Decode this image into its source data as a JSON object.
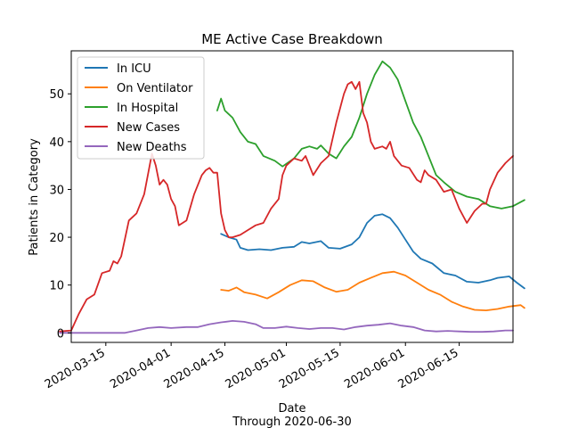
{
  "chart_data": {
    "type": "line",
    "title": "ME Active Case Breakdown",
    "xlabel": "Date",
    "xlabel_sub": "Through 2020-06-30",
    "ylabel": "Patients in Category",
    "xlim": [
      "2020-03-06",
      "2020-06-29"
    ],
    "ylim": [
      -2,
      59
    ],
    "x_ticks": [
      "2020-03-15",
      "2020-04-01",
      "2020-04-15",
      "2020-05-01",
      "2020-05-15",
      "2020-06-01",
      "2020-06-15"
    ],
    "y_ticks": [
      0,
      10,
      20,
      30,
      40,
      50
    ],
    "legend_position": "top-left",
    "grid": false,
    "series": [
      {
        "name": "In ICU",
        "color": "#1f77b4",
        "points": [
          [
            "2020-04-14",
            20.7
          ],
          [
            "2020-04-16",
            20.0
          ],
          [
            "2020-04-18",
            19.5
          ],
          [
            "2020-04-19",
            17.8
          ],
          [
            "2020-04-21",
            17.3
          ],
          [
            "2020-04-24",
            17.5
          ],
          [
            "2020-04-27",
            17.3
          ],
          [
            "2020-04-30",
            17.8
          ],
          [
            "2020-05-03",
            18.0
          ],
          [
            "2020-05-05",
            19.0
          ],
          [
            "2020-05-07",
            18.7
          ],
          [
            "2020-05-10",
            19.2
          ],
          [
            "2020-05-12",
            17.8
          ],
          [
            "2020-05-15",
            17.6
          ],
          [
            "2020-05-18",
            18.5
          ],
          [
            "2020-05-20",
            20.0
          ],
          [
            "2020-05-22",
            23.0
          ],
          [
            "2020-05-24",
            24.5
          ],
          [
            "2020-05-26",
            24.8
          ],
          [
            "2020-05-28",
            24.0
          ],
          [
            "2020-05-30",
            22.0
          ],
          [
            "2020-06-01",
            19.5
          ],
          [
            "2020-06-03",
            17.0
          ],
          [
            "2020-06-05",
            15.5
          ],
          [
            "2020-06-08",
            14.5
          ],
          [
            "2020-06-11",
            12.5
          ],
          [
            "2020-06-14",
            12.0
          ],
          [
            "2020-06-17",
            10.7
          ],
          [
            "2020-06-20",
            10.5
          ],
          [
            "2020-06-23",
            11.0
          ],
          [
            "2020-06-25",
            11.5
          ],
          [
            "2020-06-28",
            11.8
          ],
          [
            "2020-06-30",
            10.5
          ],
          [
            "2020-07-02",
            9.3
          ]
        ]
      },
      {
        "name": "On Ventilator",
        "color": "#ff7f0e",
        "points": [
          [
            "2020-04-14",
            9.0
          ],
          [
            "2020-04-16",
            8.8
          ],
          [
            "2020-04-18",
            9.5
          ],
          [
            "2020-04-20",
            8.5
          ],
          [
            "2020-04-23",
            8.0
          ],
          [
            "2020-04-26",
            7.2
          ],
          [
            "2020-04-29",
            8.5
          ],
          [
            "2020-05-02",
            10.0
          ],
          [
            "2020-05-05",
            11.0
          ],
          [
            "2020-05-08",
            10.8
          ],
          [
            "2020-05-11",
            9.5
          ],
          [
            "2020-05-14",
            8.6
          ],
          [
            "2020-05-17",
            9.0
          ],
          [
            "2020-05-20",
            10.5
          ],
          [
            "2020-05-23",
            11.5
          ],
          [
            "2020-05-26",
            12.5
          ],
          [
            "2020-05-29",
            12.8
          ],
          [
            "2020-06-01",
            12.0
          ],
          [
            "2020-06-04",
            10.5
          ],
          [
            "2020-06-07",
            9.0
          ],
          [
            "2020-06-10",
            8.0
          ],
          [
            "2020-06-13",
            6.5
          ],
          [
            "2020-06-16",
            5.5
          ],
          [
            "2020-06-19",
            4.8
          ],
          [
            "2020-06-22",
            4.7
          ],
          [
            "2020-06-25",
            5.0
          ],
          [
            "2020-06-28",
            5.5
          ],
          [
            "2020-07-01",
            5.8
          ],
          [
            "2020-07-02",
            5.2
          ]
        ]
      },
      {
        "name": "In Hospital",
        "color": "#2ca02c",
        "points": [
          [
            "2020-04-13",
            46.5
          ],
          [
            "2020-04-14",
            49.0
          ],
          [
            "2020-04-15",
            46.5
          ],
          [
            "2020-04-17",
            45.0
          ],
          [
            "2020-04-19",
            42.0
          ],
          [
            "2020-04-21",
            40.0
          ],
          [
            "2020-04-23",
            39.5
          ],
          [
            "2020-04-25",
            37.0
          ],
          [
            "2020-04-28",
            36.0
          ],
          [
            "2020-04-30",
            34.8
          ],
          [
            "2020-05-03",
            36.5
          ],
          [
            "2020-05-05",
            38.5
          ],
          [
            "2020-05-07",
            39.0
          ],
          [
            "2020-05-09",
            38.5
          ],
          [
            "2020-05-10",
            39.2
          ],
          [
            "2020-05-12",
            37.5
          ],
          [
            "2020-05-14",
            36.5
          ],
          [
            "2020-05-16",
            39.0
          ],
          [
            "2020-05-18",
            41.0
          ],
          [
            "2020-05-20",
            45.0
          ],
          [
            "2020-05-22",
            50.0
          ],
          [
            "2020-05-24",
            54.0
          ],
          [
            "2020-05-26",
            56.8
          ],
          [
            "2020-05-28",
            55.5
          ],
          [
            "2020-05-30",
            53.0
          ],
          [
            "2020-06-01",
            48.5
          ],
          [
            "2020-06-03",
            44.0
          ],
          [
            "2020-06-05",
            41.0
          ],
          [
            "2020-06-07",
            37.0
          ],
          [
            "2020-06-09",
            33.0
          ],
          [
            "2020-06-11",
            31.5
          ],
          [
            "2020-06-14",
            29.5
          ],
          [
            "2020-06-17",
            28.5
          ],
          [
            "2020-06-20",
            28.0
          ],
          [
            "2020-06-23",
            26.5
          ],
          [
            "2020-06-26",
            26.0
          ],
          [
            "2020-06-29",
            26.5
          ],
          [
            "2020-07-02",
            27.8
          ]
        ]
      },
      {
        "name": "New Cases",
        "color": "#d62728",
        "points": [
          [
            "2020-03-03",
            0.3
          ],
          [
            "2020-03-06",
            0.5
          ],
          [
            "2020-03-08",
            4.0
          ],
          [
            "2020-03-10",
            7.0
          ],
          [
            "2020-03-12",
            8.0
          ],
          [
            "2020-03-14",
            12.5
          ],
          [
            "2020-03-16",
            13.0
          ],
          [
            "2020-03-17",
            15.0
          ],
          [
            "2020-03-18",
            14.5
          ],
          [
            "2020-03-19",
            16.0
          ],
          [
            "2020-03-21",
            23.5
          ],
          [
            "2020-03-23",
            25.0
          ],
          [
            "2020-03-25",
            29.0
          ],
          [
            "2020-03-27",
            37.5
          ],
          [
            "2020-03-28",
            35.0
          ],
          [
            "2020-03-29",
            31.0
          ],
          [
            "2020-03-30",
            32.0
          ],
          [
            "2020-03-31",
            31.0
          ],
          [
            "2020-04-01",
            28.0
          ],
          [
            "2020-04-02",
            26.5
          ],
          [
            "2020-04-03",
            22.5
          ],
          [
            "2020-04-05",
            23.5
          ],
          [
            "2020-04-07",
            29.0
          ],
          [
            "2020-04-09",
            33.0
          ],
          [
            "2020-04-10",
            34.0
          ],
          [
            "2020-04-11",
            34.5
          ],
          [
            "2020-04-12",
            33.5
          ],
          [
            "2020-04-13",
            33.5
          ],
          [
            "2020-04-14",
            25.0
          ],
          [
            "2020-04-15",
            21.5
          ],
          [
            "2020-04-16",
            20.0
          ],
          [
            "2020-04-17",
            20.0
          ],
          [
            "2020-04-19",
            20.5
          ],
          [
            "2020-04-21",
            21.5
          ],
          [
            "2020-04-23",
            22.5
          ],
          [
            "2020-04-25",
            23.0
          ],
          [
            "2020-04-27",
            26.0
          ],
          [
            "2020-04-29",
            28.0
          ],
          [
            "2020-04-30",
            33.0
          ],
          [
            "2020-05-01",
            35.0
          ],
          [
            "2020-05-03",
            36.5
          ],
          [
            "2020-05-05",
            36.0
          ],
          [
            "2020-05-06",
            37.0
          ],
          [
            "2020-05-08",
            33.0
          ],
          [
            "2020-05-10",
            35.5
          ],
          [
            "2020-05-12",
            37.0
          ],
          [
            "2020-05-14",
            44.0
          ],
          [
            "2020-05-16",
            50.0
          ],
          [
            "2020-05-17",
            52.0
          ],
          [
            "2020-05-18",
            52.5
          ],
          [
            "2020-05-19",
            51.0
          ],
          [
            "2020-05-20",
            52.5
          ],
          [
            "2020-05-21",
            46.0
          ],
          [
            "2020-05-22",
            44.0
          ],
          [
            "2020-05-23",
            40.0
          ],
          [
            "2020-05-24",
            38.5
          ],
          [
            "2020-05-26",
            39.0
          ],
          [
            "2020-05-27",
            38.5
          ],
          [
            "2020-05-28",
            40.0
          ],
          [
            "2020-05-29",
            37.0
          ],
          [
            "2020-05-31",
            35.0
          ],
          [
            "2020-06-02",
            34.5
          ],
          [
            "2020-06-04",
            32.0
          ],
          [
            "2020-06-05",
            31.5
          ],
          [
            "2020-06-06",
            34.0
          ],
          [
            "2020-06-07",
            33.0
          ],
          [
            "2020-06-09",
            32.0
          ],
          [
            "2020-06-11",
            29.5
          ],
          [
            "2020-06-13",
            30.0
          ],
          [
            "2020-06-15",
            26.0
          ],
          [
            "2020-06-17",
            23.0
          ],
          [
            "2020-06-19",
            25.5
          ],
          [
            "2020-06-21",
            27.0
          ],
          [
            "2020-06-22",
            27.0
          ],
          [
            "2020-06-23",
            30.0
          ],
          [
            "2020-06-25",
            33.5
          ],
          [
            "2020-06-27",
            35.5
          ],
          [
            "2020-06-29",
            37.0
          ]
        ]
      },
      {
        "name": "New Deaths",
        "color": "#9467bd",
        "points": [
          [
            "2020-03-03",
            0.0
          ],
          [
            "2020-03-10",
            0.0
          ],
          [
            "2020-03-20",
            0.0
          ],
          [
            "2020-03-23",
            0.5
          ],
          [
            "2020-03-26",
            1.0
          ],
          [
            "2020-03-29",
            1.2
          ],
          [
            "2020-04-01",
            1.0
          ],
          [
            "2020-04-05",
            1.2
          ],
          [
            "2020-04-08",
            1.2
          ],
          [
            "2020-04-11",
            1.8
          ],
          [
            "2020-04-14",
            2.2
          ],
          [
            "2020-04-17",
            2.5
          ],
          [
            "2020-04-20",
            2.3
          ],
          [
            "2020-04-23",
            1.8
          ],
          [
            "2020-04-25",
            1.0
          ],
          [
            "2020-04-28",
            1.0
          ],
          [
            "2020-05-01",
            1.3
          ],
          [
            "2020-05-04",
            1.0
          ],
          [
            "2020-05-07",
            0.8
          ],
          [
            "2020-05-10",
            1.0
          ],
          [
            "2020-05-13",
            1.0
          ],
          [
            "2020-05-16",
            0.7
          ],
          [
            "2020-05-19",
            1.2
          ],
          [
            "2020-05-22",
            1.5
          ],
          [
            "2020-05-25",
            1.7
          ],
          [
            "2020-05-28",
            2.0
          ],
          [
            "2020-05-31",
            1.5
          ],
          [
            "2020-06-03",
            1.2
          ],
          [
            "2020-06-06",
            0.5
          ],
          [
            "2020-06-09",
            0.3
          ],
          [
            "2020-06-12",
            0.4
          ],
          [
            "2020-06-15",
            0.3
          ],
          [
            "2020-06-18",
            0.2
          ],
          [
            "2020-06-21",
            0.2
          ],
          [
            "2020-06-24",
            0.3
          ],
          [
            "2020-06-27",
            0.5
          ],
          [
            "2020-06-29",
            0.5
          ]
        ]
      }
    ]
  }
}
